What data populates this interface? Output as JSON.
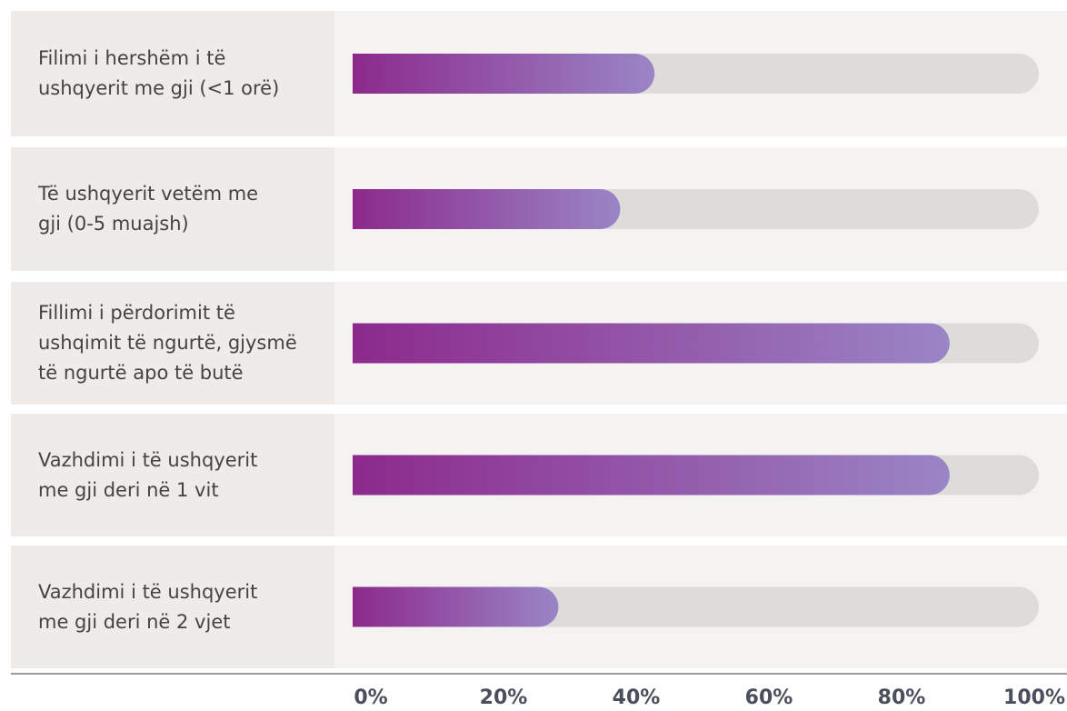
{
  "chart_data": {
    "type": "bar",
    "categories": [
      "Filimi i hershëm i të\nushqyerit me gji (<1 orë)",
      "Të ushqyerit vetëm me\ngji (0-5 muajsh)",
      "Fillimi i përdorimit të\nushqimit të ngurtë, gjysmë\ntë ngurtë apo të butë",
      "Vazhdimi i të ushqyerit\nme gji deri në 1 vit",
      "Vazhdimi i të ushqyerit\nme gji deri në 2 vjet"
    ],
    "values": [
      44,
      39,
      87,
      87,
      30
    ],
    "colors": [
      "#8c2a8c",
      "#9a85c6"
    ],
    "track_color": "#dedcda",
    "xlim": [
      0,
      100
    ],
    "xticks": [
      {
        "value": 0,
        "label": "0%"
      },
      {
        "value": 20,
        "label": "20%"
      },
      {
        "value": 40,
        "label": "40%"
      },
      {
        "value": 60,
        "label": "60%"
      },
      {
        "value": 80,
        "label": "80%"
      },
      {
        "value": 100,
        "label": "100%"
      }
    ]
  }
}
